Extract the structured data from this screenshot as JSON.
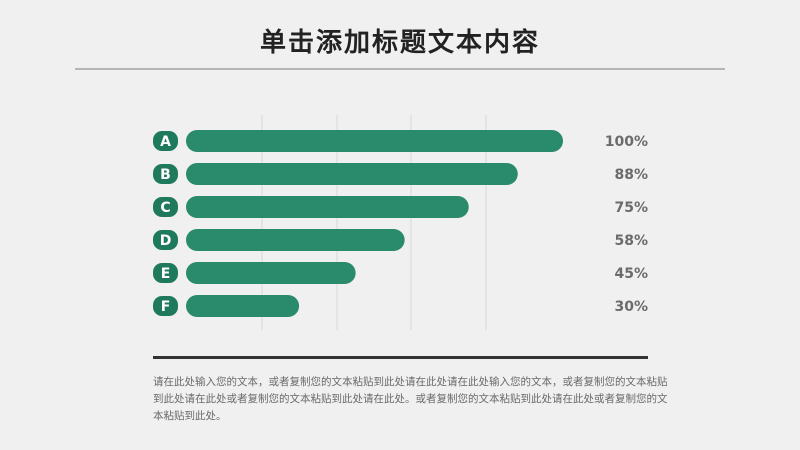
{
  "title": "单击添加标题文本内容",
  "chart_data": {
    "type": "bar",
    "orientation": "horizontal",
    "categories": [
      "A",
      "B",
      "C",
      "D",
      "E",
      "F"
    ],
    "values": [
      100,
      88,
      75,
      58,
      45,
      30
    ],
    "value_labels": [
      "100%",
      "88%",
      "75%",
      "58%",
      "45%",
      "30%"
    ],
    "xlim": [
      0,
      100
    ],
    "grid": true,
    "colors": {
      "bar": "#2a8a6c",
      "badge": "#1f7a5d",
      "badge_text": "#ffffff",
      "value_text": "#6b6b6b",
      "grid": "#d9d9d9"
    }
  },
  "body": "请在此处输入您的文本，或者复制您的文本粘贴到此处请在此处请在此处输入您的文本，或者复制您的文本粘贴到此处请在此处或者复制您的文本粘贴到此处请在此处。或者复制您的文本粘贴到此处请在此处或者复制您的文本粘贴到此处。"
}
